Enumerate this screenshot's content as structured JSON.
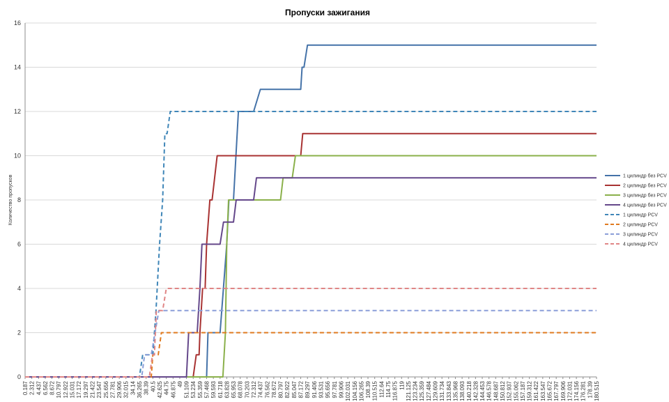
{
  "chart_data": {
    "type": "line",
    "title": "Пропуски зажигания",
    "xlabel": "",
    "ylabel": "Количество пропусков",
    "ylim": [
      0,
      16
    ],
    "yticks": [
      0,
      2,
      4,
      6,
      8,
      10,
      12,
      14,
      16
    ],
    "grid": "horizontal",
    "legend_position": "right",
    "x_tick_labels": [
      "0.187",
      "2.312",
      "4.437",
      "6.562",
      "8.672",
      "10.797",
      "12.922",
      "15.031",
      "17.172",
      "19.297",
      "21.422",
      "23.547",
      "25.656",
      "27.781",
      "29.906",
      "32.015",
      "34.14",
      "36.265",
      "38.39",
      "40.5",
      "42.625",
      "44.75",
      "46.875",
      "49",
      "51.109",
      "53.234",
      "55.359",
      "57.468",
      "59.593",
      "61.718",
      "63.828",
      "65.953",
      "68.078",
      "70.203",
      "72.312",
      "74.437",
      "76.562",
      "78.672",
      "80.797",
      "82.922",
      "85.047",
      "87.172",
      "89.297",
      "91.406",
      "93.531",
      "95.656",
      "97.781",
      "99.906",
      "102.031",
      "104.156",
      "106.265",
      "108.39",
      "110.515",
      "112.64",
      "114.75",
      "116.875",
      "119",
      "121.125",
      "123.234",
      "125.359",
      "127.484",
      "129.609",
      "131.734",
      "133.843",
      "135.968",
      "138.093",
      "140.218",
      "142.328",
      "144.453",
      "146.578",
      "148.687",
      "150.812",
      "152.937",
      "155.062",
      "157.187",
      "159.312",
      "161.422",
      "163.547",
      "165.672",
      "167.797",
      "169.906",
      "172.031",
      "174.156",
      "176.281",
      "178.39",
      "180.515"
    ],
    "series": [
      {
        "name": "1 цилиндр без PCV",
        "color": "#4472a8",
        "dash": false,
        "points": [
          [
            0.187,
            0
          ],
          [
            57.468,
            0
          ],
          [
            57.9,
            2
          ],
          [
            61.5,
            2
          ],
          [
            61.718,
            2
          ],
          [
            63.828,
            6
          ],
          [
            64.5,
            8
          ],
          [
            65.953,
            8
          ],
          [
            67.5,
            12
          ],
          [
            72.312,
            12
          ],
          [
            74.437,
            13
          ],
          [
            87.172,
            13
          ],
          [
            87.6,
            14
          ],
          [
            88.2,
            14
          ],
          [
            89.297,
            15
          ],
          [
            180.515,
            15
          ]
        ]
      },
      {
        "name": "2 цилиндр без PCV",
        "color": "#a83232",
        "dash": false,
        "points": [
          [
            0.187,
            0
          ],
          [
            53.234,
            0
          ],
          [
            54.2,
            1
          ],
          [
            55.1,
            1
          ],
          [
            55.359,
            2
          ],
          [
            56.2,
            4
          ],
          [
            57.0,
            4
          ],
          [
            57.468,
            6
          ],
          [
            58.5,
            8
          ],
          [
            59.2,
            8
          ],
          [
            60.8,
            10
          ],
          [
            87.172,
            10
          ],
          [
            87.8,
            11
          ],
          [
            180.515,
            11
          ]
        ]
      },
      {
        "name": "3 цилиндр без PCV",
        "color": "#8ab04a",
        "dash": false,
        "points": [
          [
            0.187,
            0
          ],
          [
            61.718,
            0
          ],
          [
            62.6,
            0
          ],
          [
            63.4,
            2
          ],
          [
            63.828,
            6
          ],
          [
            64.4,
            8
          ],
          [
            70.203,
            8
          ],
          [
            72.312,
            8
          ],
          [
            80.797,
            8
          ],
          [
            81.6,
            9
          ],
          [
            84.5,
            9
          ],
          [
            85.5,
            10
          ],
          [
            180.515,
            10
          ]
        ]
      },
      {
        "name": "4 цилиндр без PCV",
        "color": "#64478a",
        "dash": false,
        "points": [
          [
            0.187,
            0
          ],
          [
            51.109,
            0
          ],
          [
            51.8,
            2
          ],
          [
            53.234,
            2
          ],
          [
            54.5,
            2
          ],
          [
            55.359,
            4
          ],
          [
            56.0,
            6
          ],
          [
            61.718,
            6
          ],
          [
            62.8,
            7
          ],
          [
            65.953,
            7
          ],
          [
            66.8,
            8
          ],
          [
            69.8,
            8
          ],
          [
            70.203,
            8
          ],
          [
            72.312,
            8
          ],
          [
            73.2,
            9
          ],
          [
            180.515,
            9
          ]
        ]
      },
      {
        "name": "1 цилиндр  PCV",
        "color": "#3f86b8",
        "dash": true,
        "points": [
          [
            0.187,
            0
          ],
          [
            36.265,
            0
          ],
          [
            37.3,
            1
          ],
          [
            38.39,
            1
          ],
          [
            40.5,
            1
          ],
          [
            41.5,
            3
          ],
          [
            42.625,
            6
          ],
          [
            43.6,
            8
          ],
          [
            44.3,
            11
          ],
          [
            45.0,
            11
          ],
          [
            46.0,
            12
          ],
          [
            180.515,
            12
          ]
        ]
      },
      {
        "name": "2 цилиндр  PCV",
        "color": "#e07a1f",
        "dash": true,
        "points": [
          [
            0.187,
            0
          ],
          [
            40.0,
            0
          ],
          [
            40.5,
            1
          ],
          [
            42.2,
            1
          ],
          [
            43.2,
            2
          ],
          [
            180.515,
            2
          ]
        ]
      },
      {
        "name": "3 цилиндр  PCV",
        "color": "#8a9ed8",
        "dash": true,
        "points": [
          [
            0.187,
            0
          ],
          [
            37.0,
            0
          ],
          [
            37.9,
            1
          ],
          [
            40.0,
            1
          ],
          [
            41.2,
            2
          ],
          [
            42.4,
            3
          ],
          [
            180.515,
            3
          ]
        ]
      },
      {
        "name": "4 цилиндр  PCV",
        "color": "#e08585",
        "dash": true,
        "points": [
          [
            0.187,
            0
          ],
          [
            39.4,
            0
          ],
          [
            40.4,
            1
          ],
          [
            41.0,
            1
          ],
          [
            41.6,
            3
          ],
          [
            43.6,
            3
          ],
          [
            44.75,
            4
          ],
          [
            180.515,
            4
          ]
        ]
      }
    ]
  }
}
